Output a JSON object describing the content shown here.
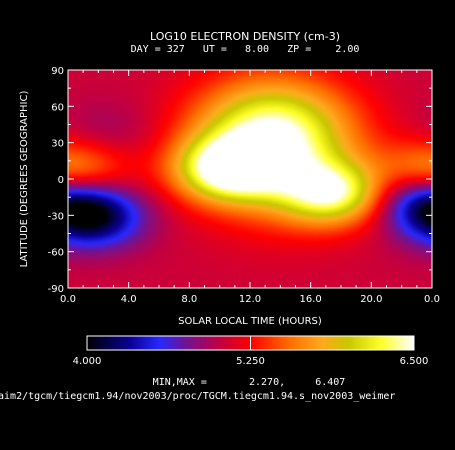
{
  "chart_data": {
    "type": "heatmap",
    "title": "LOG10 ELECTRON DENSITY (cm-3)",
    "subtitle": "DAY = 327   UT =   8.00   ZP =    2.00",
    "xlabel": "SOLAR LOCAL TIME (HOURS)",
    "ylabel": "LATITUDE (DEGREES GEOGRAPHIC)",
    "xlim": [
      0,
      24
    ],
    "ylim": [
      -90,
      90
    ],
    "x_tick_labels": [
      "0.0",
      "4.0",
      "8.0",
      "12.0",
      "16.0",
      "20.0",
      "0.0"
    ],
    "y_tick_labels": [
      "90",
      "60",
      "30",
      "0",
      "-30",
      "-60",
      "-90"
    ],
    "colorbar": {
      "min": 4.0,
      "max": 6.5,
      "labels": [
        "4.000",
        "5.250",
        "6.500"
      ],
      "marker": 5.25
    },
    "minmax_text": "MIN,MAX =       2.270,     6.407",
    "data_min": 2.27,
    "data_max": 6.407,
    "field_features": [
      {
        "lt": 13.5,
        "lat": 38,
        "value": 6.4,
        "note": "daytime maximum"
      },
      {
        "lt": 10.5,
        "lat": 8,
        "value": 6.3
      },
      {
        "lt": 17.5,
        "lat": -12,
        "value": 6.2
      },
      {
        "lt": 1.5,
        "lat": -32,
        "value": 4.1,
        "note": "minimum"
      },
      {
        "lt": 23.5,
        "lat": -14,
        "value": 4.3
      },
      {
        "lt": 2.5,
        "lat": 40,
        "value": 4.9
      },
      {
        "lt": 0.2,
        "lat": 5,
        "value": 5.9
      }
    ]
  },
  "footer": {
    "path": "/aim2/tgcm/tiegcm1.94/nov2003/proc/TGCM.tiegcm1.94.s_nov2003_weimer"
  }
}
